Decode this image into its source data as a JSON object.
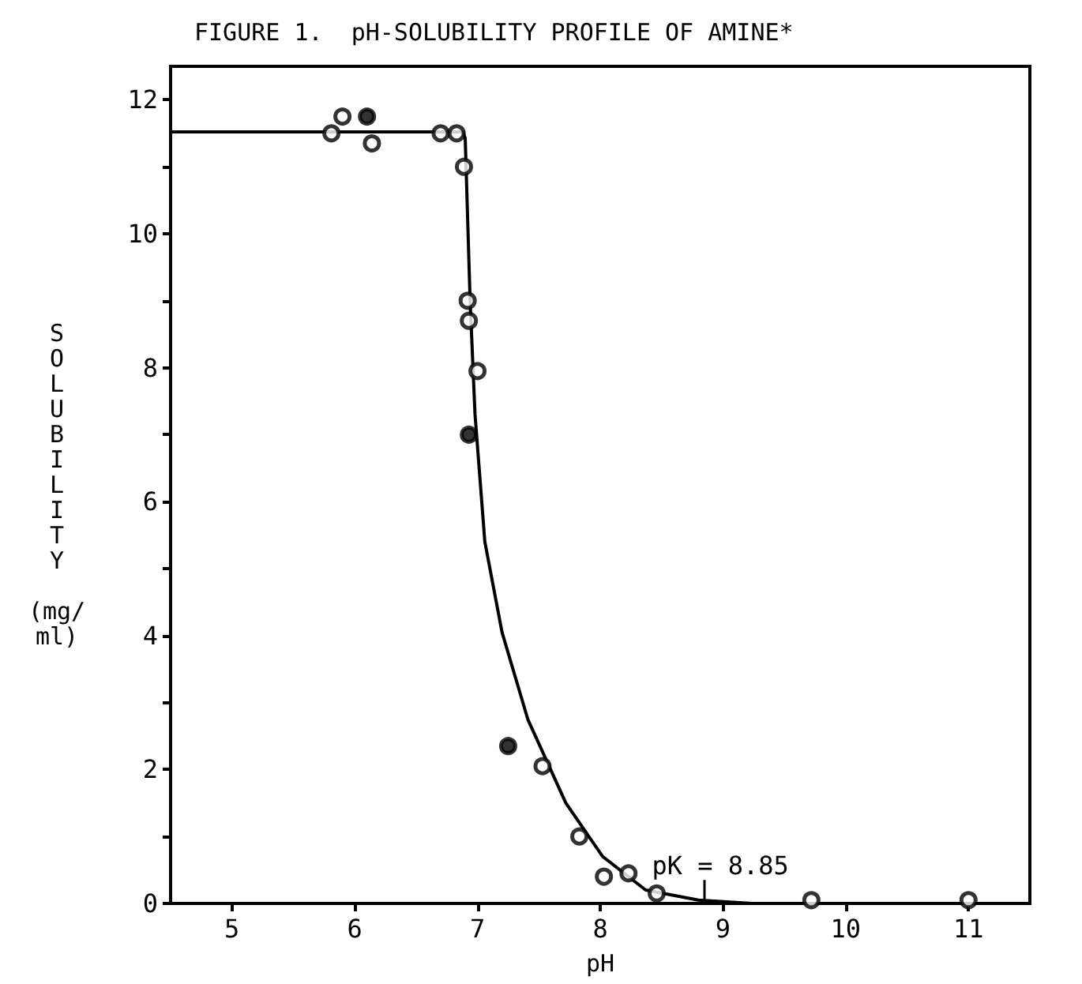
{
  "chart_data": {
    "type": "scatter",
    "title": "FIGURE 1.  pH-SOLUBILITY PROFILE OF AMINE*",
    "xlabel": "pH",
    "ylabel": "SOLUBILITY (mg/ml)",
    "series": [
      {
        "type": "line",
        "color": "#000000",
        "marker": "none",
        "line_style": "solid",
        "x": [
          4.5,
          6.88,
          6.9,
          6.94,
          6.98,
          7.06,
          7.2,
          7.41,
          7.72,
          8.02,
          8.37,
          8.8,
          9.24,
          11.5
        ],
        "values": [
          11.52,
          11.52,
          11.43,
          9.0,
          7.3,
          5.4,
          4.05,
          2.75,
          1.5,
          0.7,
          0.2,
          0.05,
          0,
          0
        ]
      },
      {
        "color": "#000000",
        "marker": "circle",
        "x": [
          5.81,
          5.9,
          6.14,
          6.7,
          6.83,
          6.89,
          6.92,
          6.93,
          7.0,
          7.53,
          7.83,
          8.03,
          8.23,
          8.46,
          9.72,
          11.0
        ],
        "values": [
          11.5,
          11.75,
          11.35,
          11.5,
          11.5,
          11.0,
          9.0,
          8.7,
          7.95,
          2.05,
          1.0,
          0.4,
          0.45,
          0.15,
          0.05,
          0.05
        ]
      },
      {
        "color": "#000000",
        "marker": "circle",
        "x": [
          6.1,
          6.93,
          7.25
        ],
        "values": [
          11.75,
          7.0,
          2.35
        ]
      }
    ],
    "xlim": [
      4.5,
      11.5
    ],
    "xticks": [
      5,
      6,
      7,
      8,
      9,
      10,
      11
    ],
    "ylim": [
      0,
      12.5
    ],
    "yticks": [
      0,
      {
        "value": 1,
        "label": null
      },
      2,
      {
        "value": 3,
        "label": null
      },
      4,
      {
        "value": 5,
        "label": null
      },
      6,
      {
        "value": 7,
        "label": null
      },
      8,
      {
        "value": 9,
        "label": null
      },
      10,
      {
        "value": 11,
        "label": null
      },
      12
    ],
    "annotations": [
      {
        "text": "pK = 8.85",
        "x": 8.85,
        "y": 0
      }
    ]
  }
}
